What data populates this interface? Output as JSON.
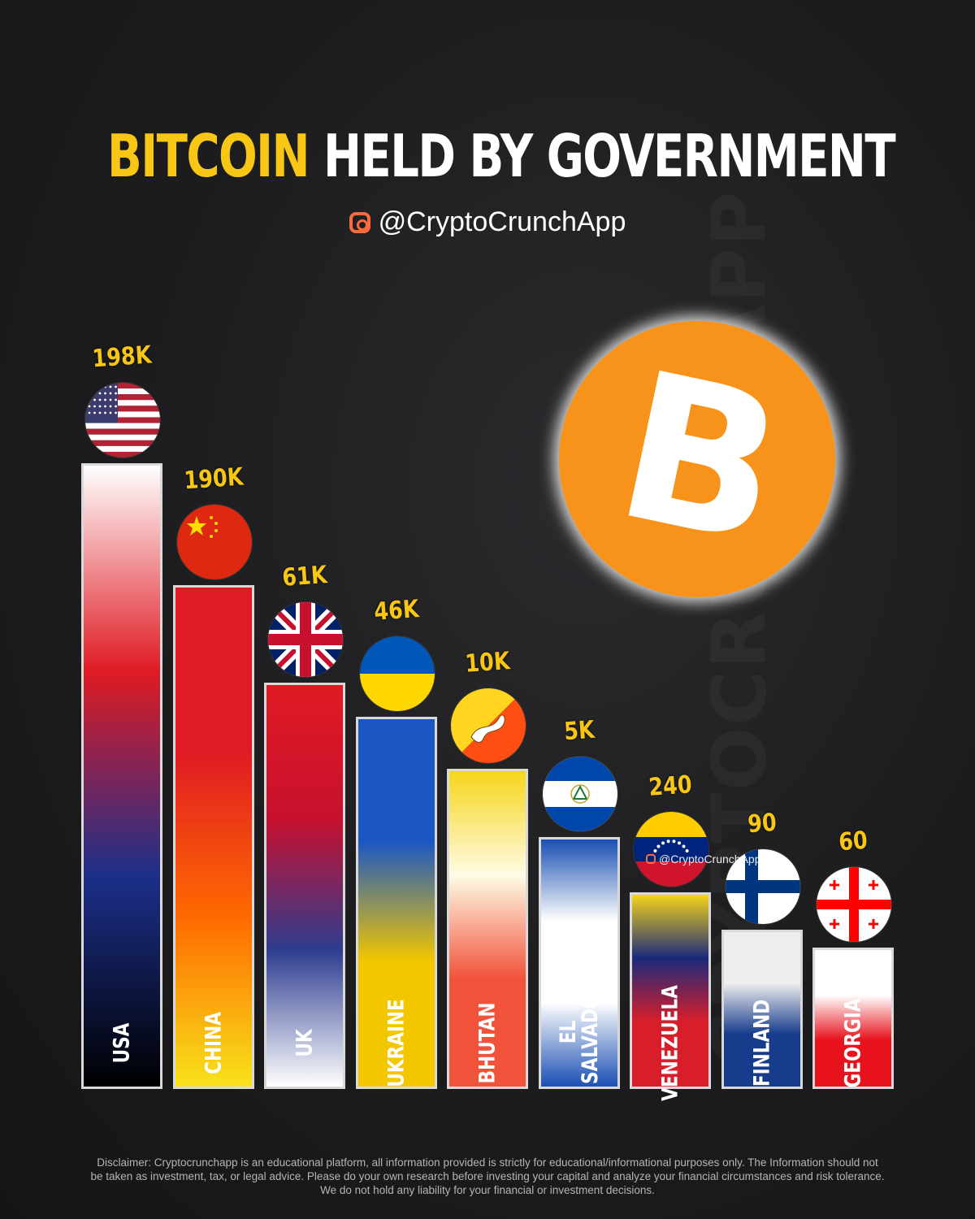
{
  "header": {
    "title_accent": "BITCOIN",
    "title_rest": "HELD BY GOVERNMENT",
    "handle": "@CryptoCrunchApp",
    "watermark_side": "CRYPTOCRUNCHAPP"
  },
  "coin": {
    "symbol": "B",
    "color": "#f7931a"
  },
  "watermark_small": "@CryptoCrunchApp",
  "disclaimer": "Disclaimer: Cryptocrunchapp is an educational platform, all information provided is strictly for educational/informational purposes only. The Information should not be taken as investment, tax, or legal advice. Please do your own research before investing your capital and analyze your financial circumstances and risk tolerance. We do not hold any liability for your financial or investment decisions.",
  "chart_data": {
    "type": "bar",
    "title": "BITCOIN HELD BY GOVERNMENT",
    "categories": [
      "USA",
      "CHINA",
      "UK",
      "UKRAINE",
      "BHUTAN",
      "EL\nSALVADOR",
      "VENEZUELA",
      "FINLAND",
      "GEORGIA"
    ],
    "value_labels": [
      "198K",
      "190K",
      "61K",
      "46K",
      "10K",
      "5K",
      "240",
      "90",
      "60"
    ],
    "values": [
      198000,
      190000,
      61000,
      46000,
      10000,
      5000,
      240,
      90,
      60
    ],
    "flags": [
      "usa-flag-icon",
      "china-flag-icon",
      "uk-flag-icon",
      "ukraine-flag-icon",
      "bhutan-flag-icon",
      "el-salvador-flag-icon",
      "venezuela-flag-icon",
      "finland-flag-icon",
      "georgia-flag-icon"
    ],
    "bar_colors": [
      [
        "#ffffff",
        "#e01b24",
        "#1c2f8a",
        "#000000"
      ],
      [
        "#e01b24",
        "#e01b24",
        "#ff6a00",
        "#f7e21a"
      ],
      [
        "#e01b24",
        "#c8102e",
        "#2e3d8f",
        "#ffffff"
      ],
      [
        "#1a56c4",
        "#1a56c4",
        "#f3c700",
        "#f3c700"
      ],
      [
        "#f5d51a",
        "#fffbe5",
        "#f0523a",
        "#f0523a"
      ],
      [
        "#1a4fb3",
        "#ffffff",
        "#ffffff",
        "#1a4fb3"
      ],
      [
        "#f5d51a",
        "#1a2a7a",
        "#d81e2b",
        "#d81e2b"
      ],
      [
        "#eeeeee",
        "#eeeeee",
        "#183c8c",
        "#183c8c"
      ],
      [
        "#ffffff",
        "#ffffff",
        "#e8121c",
        "#e8121c"
      ]
    ],
    "scale": "non-linear (visual ordering only)",
    "grid": false,
    "legend": "none"
  }
}
